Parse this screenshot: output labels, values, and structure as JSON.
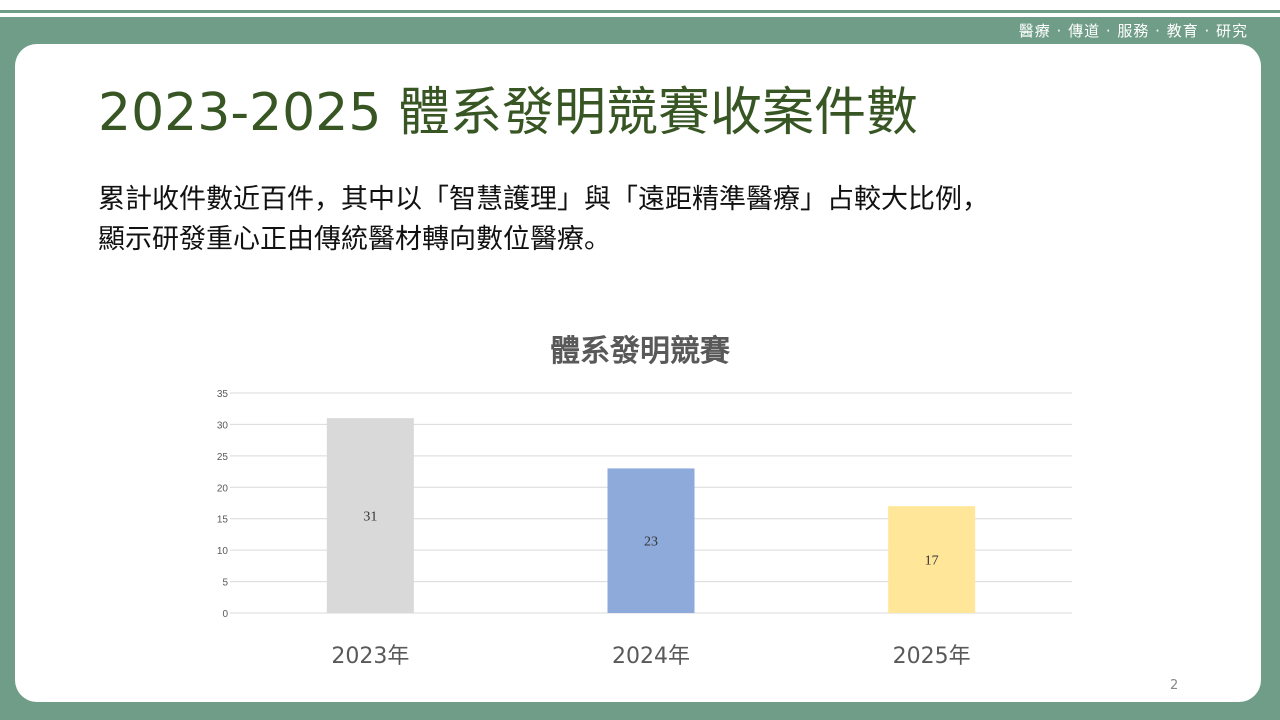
{
  "header": {
    "tagline": "醫療 · 傳道 · 服務 · 教育 · 研究"
  },
  "slide": {
    "title": "2023-2025 體系發明競賽收案件數",
    "body_lines": [
      "累計收件數近百件，其中以「智慧護理」與「遠距精準醫療」占較大比例，",
      "顯示研發重心正由傳統醫材轉向數位醫療。"
    ],
    "page_number": "2"
  },
  "colors": {
    "frame": "#6f9d88",
    "title": "#375623"
  },
  "chart_data": {
    "type": "bar",
    "title": "體系發明競賽",
    "categories": [
      "2023年",
      "2024年",
      "2025年"
    ],
    "values": [
      31,
      23,
      17
    ],
    "data_labels": [
      "31",
      "23",
      "17"
    ],
    "bar_colors": [
      "#d9d9d9",
      "#8eaadb",
      "#ffe699"
    ],
    "ylim": [
      0,
      35
    ],
    "yticks": [
      "0",
      "5",
      "10",
      "15",
      "20",
      "25",
      "30",
      "35"
    ],
    "grid": true,
    "legend": "none"
  }
}
